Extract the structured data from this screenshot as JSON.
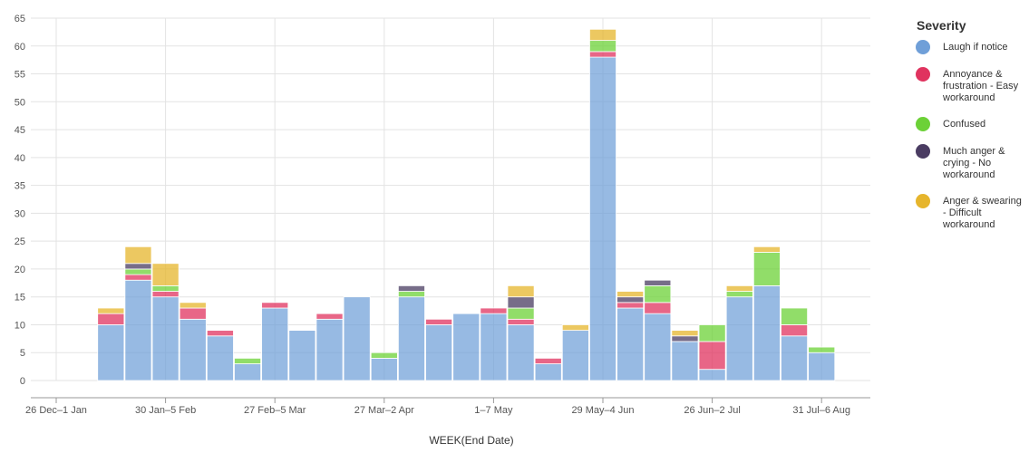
{
  "chart_data": {
    "type": "bar",
    "stacked": true,
    "xlabel": "WEEK(End Date)",
    "ylabel": "",
    "ylim": [
      0,
      65
    ],
    "yticks": [
      0,
      5,
      10,
      15,
      20,
      25,
      30,
      35,
      40,
      45,
      50,
      55,
      60,
      65
    ],
    "x_tick_labels": [
      "26 Dec–1 Jan",
      "30 Jan–5 Feb",
      "27 Feb–5 Mar",
      "27 Mar–2 Apr",
      "1–7 May",
      "29 May–4 Jun",
      "26 Jun–2 Jul",
      "31 Jul–6 Aug"
    ],
    "grid": true,
    "legend_position": "right",
    "legend_title": "Severity",
    "series": [
      {
        "name": "Laugh if notice",
        "color": "#6f9fd8",
        "values": [
          10,
          18,
          15,
          11,
          8,
          3,
          13,
          9,
          11,
          15,
          4,
          15,
          10,
          12,
          12,
          10,
          3,
          9,
          58,
          13,
          12,
          7,
          2,
          15,
          17,
          8,
          5
        ]
      },
      {
        "name": "Annoyance & frustration - Easy workaround",
        "color": "#e0335f",
        "values": [
          2,
          1,
          1,
          2,
          1,
          0,
          1,
          0,
          1,
          0,
          0,
          0,
          1,
          0,
          1,
          1,
          1,
          0,
          1,
          1,
          2,
          0,
          5,
          0,
          0,
          2,
          0
        ]
      },
      {
        "name": "Confused",
        "color": "#6cd137",
        "values": [
          0,
          1,
          1,
          0,
          0,
          1,
          0,
          0,
          0,
          0,
          1,
          1,
          0,
          0,
          0,
          2,
          0,
          0,
          2,
          0,
          3,
          0,
          3,
          1,
          6,
          3,
          1
        ]
      },
      {
        "name": "Much anger & crying - No workaround",
        "color": "#4a3c62",
        "values": [
          0,
          1,
          0,
          0,
          0,
          0,
          0,
          0,
          0,
          0,
          0,
          1,
          0,
          0,
          0,
          2,
          0,
          0,
          0,
          1,
          1,
          1,
          0,
          0,
          0,
          0,
          0
        ]
      },
      {
        "name": "Anger & swearing - Difficult workaround",
        "color": "#e6b52c",
        "values": [
          1,
          3,
          4,
          1,
          0,
          0,
          0,
          0,
          0,
          0,
          0,
          0,
          0,
          0,
          0,
          2,
          0,
          1,
          2,
          1,
          0,
          1,
          0,
          1,
          1,
          0,
          0
        ]
      }
    ]
  }
}
